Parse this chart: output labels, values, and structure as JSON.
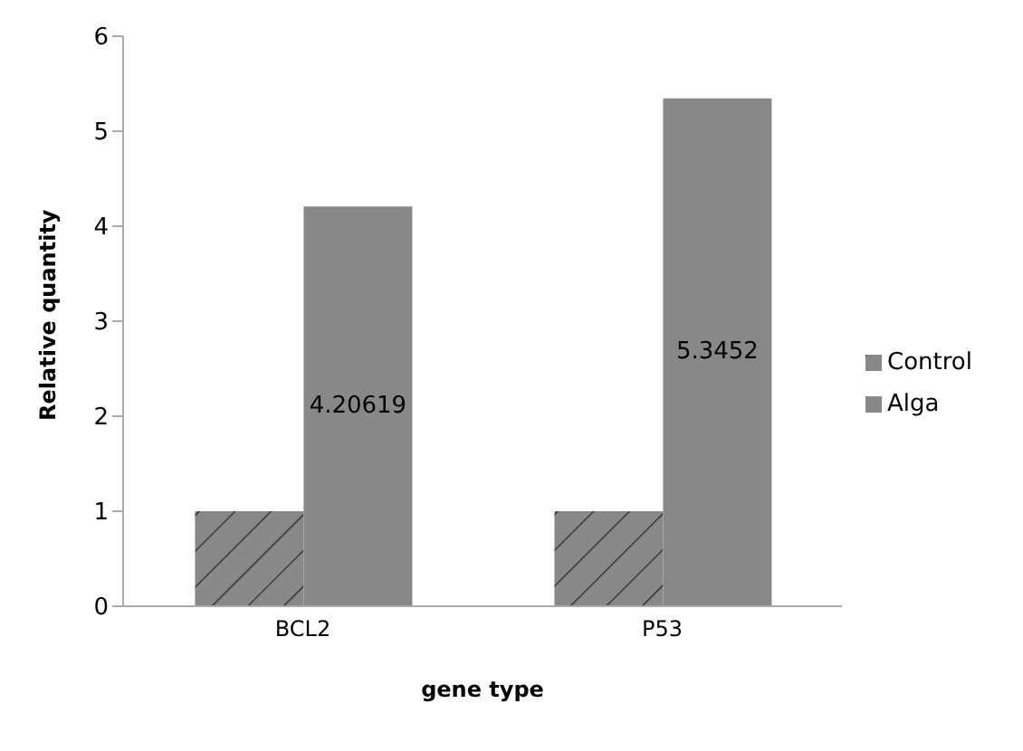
{
  "chart_data": {
    "type": "bar",
    "xlabel": "gene type",
    "ylabel": "Relative quantity",
    "categories": [
      "BCL2",
      "P53"
    ],
    "series": [
      {
        "name": "Control",
        "color": "#888888",
        "values": [
          1,
          1
        ]
      },
      {
        "name": "Alga",
        "color": "#888888",
        "values": [
          4.20619,
          5.3452
        ],
        "value_labels": [
          "4.20619",
          "5.3452"
        ]
      }
    ],
    "ylim": [
      0,
      6
    ],
    "yticks": [
      0,
      1,
      2,
      3,
      4,
      5,
      6
    ],
    "legend": "right"
  }
}
